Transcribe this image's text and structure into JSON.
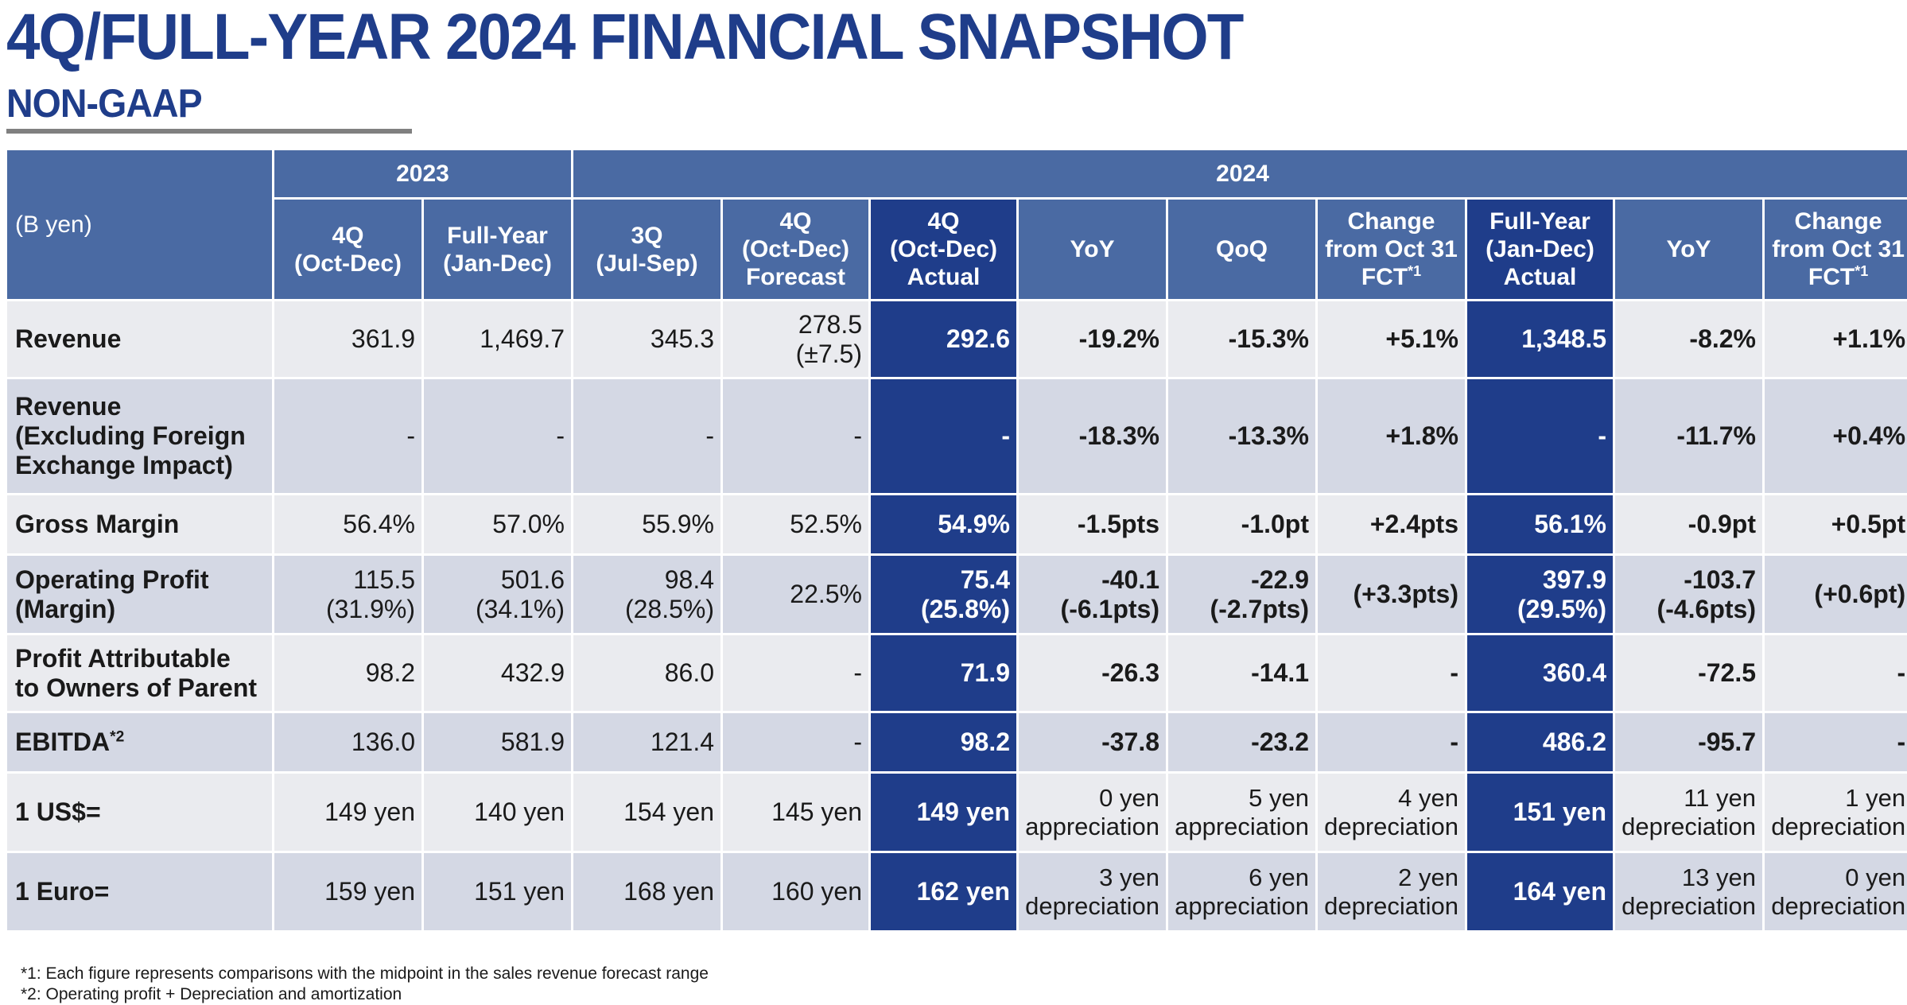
{
  "title": "4Q/FULL-YEAR 2024 FINANCIAL SNAPSHOT",
  "subtitle": "NON-GAAP",
  "colors": {
    "accent": "#1f3d8a",
    "header": "#4a6aa3",
    "row_light": "#eaebef",
    "row_dark": "#d4d8e4",
    "rule": "#808080"
  },
  "table": {
    "unit_label": "(B yen)",
    "year_2023": "2023",
    "year_2024": "2024",
    "columns": [
      {
        "line1": "4Q",
        "line2": "(Oct-Dec)",
        "line3": ""
      },
      {
        "line1": "Full-Year",
        "line2": "(Jan-Dec)",
        "line3": ""
      },
      {
        "line1": "3Q",
        "line2": "(Jul-Sep)",
        "line3": ""
      },
      {
        "line1": "4Q",
        "line2": "(Oct-Dec)",
        "line3": "Forecast"
      },
      {
        "line1": "4Q",
        "line2": "(Oct-Dec)",
        "line3": "Actual"
      },
      {
        "line1": "YoY",
        "line2": "",
        "line3": ""
      },
      {
        "line1": "QoQ",
        "line2": "",
        "line3": ""
      },
      {
        "line1": "Change",
        "line2": "from Oct 31",
        "line3": "FCT",
        "note": "*1"
      },
      {
        "line1": "Full-Year",
        "line2": "(Jan-Dec)",
        "line3": "Actual"
      },
      {
        "line1": "YoY",
        "line2": "",
        "line3": ""
      },
      {
        "line1": "Change",
        "line2": "from Oct 31",
        "line3": "FCT",
        "note": "*1"
      }
    ],
    "rows": [
      {
        "label1": "Revenue",
        "label2": "",
        "label3": "",
        "label_note": "",
        "cells": [
          [
            "361.9",
            ""
          ],
          [
            "1,469.7",
            ""
          ],
          [
            "345.3",
            ""
          ],
          [
            "278.5",
            "(±7.5)"
          ],
          [
            "292.6",
            ""
          ],
          [
            "-19.2%",
            ""
          ],
          [
            "-15.3%",
            ""
          ],
          [
            "+5.1%",
            ""
          ],
          [
            "1,348.5",
            ""
          ],
          [
            "-8.2%",
            ""
          ],
          [
            "+1.1%",
            ""
          ]
        ]
      },
      {
        "label1": "Revenue",
        "label2": "(Excluding Foreign",
        "label3": "Exchange Impact)",
        "label_note": "",
        "cells": [
          [
            "-",
            ""
          ],
          [
            "-",
            ""
          ],
          [
            "-",
            ""
          ],
          [
            "-",
            ""
          ],
          [
            "-",
            ""
          ],
          [
            "-18.3%",
            ""
          ],
          [
            "-13.3%",
            ""
          ],
          [
            "+1.8%",
            ""
          ],
          [
            "-",
            ""
          ],
          [
            "-11.7%",
            ""
          ],
          [
            "+0.4%",
            ""
          ]
        ]
      },
      {
        "label1": "Gross Margin",
        "label2": "",
        "label3": "",
        "label_note": "",
        "cells": [
          [
            "56.4%",
            ""
          ],
          [
            "57.0%",
            ""
          ],
          [
            "55.9%",
            ""
          ],
          [
            "52.5%",
            ""
          ],
          [
            "54.9%",
            ""
          ],
          [
            "-1.5pts",
            ""
          ],
          [
            "-1.0pt",
            ""
          ],
          [
            "+2.4pts",
            ""
          ],
          [
            "56.1%",
            ""
          ],
          [
            "-0.9pt",
            ""
          ],
          [
            "+0.5pt",
            ""
          ]
        ]
      },
      {
        "label1": "Operating Profit",
        "label2": "(Margin)",
        "label3": "",
        "label_note": "",
        "cells": [
          [
            "115.5",
            "(31.9%)"
          ],
          [
            "501.6",
            "(34.1%)"
          ],
          [
            "98.4",
            "(28.5%)"
          ],
          [
            "22.5%",
            ""
          ],
          [
            "75.4",
            "(25.8%)"
          ],
          [
            "-40.1",
            "(-6.1pts)"
          ],
          [
            "-22.9",
            "(-2.7pts)"
          ],
          [
            "(+3.3pts)",
            ""
          ],
          [
            "397.9",
            "(29.5%)"
          ],
          [
            "-103.7",
            "(-4.6pts)"
          ],
          [
            "(+0.6pt)",
            ""
          ]
        ]
      },
      {
        "label1": "Profit Attributable",
        "label2": "to Owners of Parent",
        "label3": "",
        "label_note": "",
        "cells": [
          [
            "98.2",
            ""
          ],
          [
            "432.9",
            ""
          ],
          [
            "86.0",
            ""
          ],
          [
            "-",
            ""
          ],
          [
            "71.9",
            ""
          ],
          [
            "-26.3",
            ""
          ],
          [
            "-14.1",
            ""
          ],
          [
            "-",
            ""
          ],
          [
            "360.4",
            ""
          ],
          [
            "-72.5",
            ""
          ],
          [
            "-",
            ""
          ]
        ]
      },
      {
        "label1": "EBITDA",
        "label2": "",
        "label3": "",
        "label_note": "*2",
        "cells": [
          [
            "136.0",
            ""
          ],
          [
            "581.9",
            ""
          ],
          [
            "121.4",
            ""
          ],
          [
            "-",
            ""
          ],
          [
            "98.2",
            ""
          ],
          [
            "-37.8",
            ""
          ],
          [
            "-23.2",
            ""
          ],
          [
            "-",
            ""
          ],
          [
            "486.2",
            ""
          ],
          [
            "-95.7",
            ""
          ],
          [
            "-",
            ""
          ]
        ]
      },
      {
        "label1": "1 US$=",
        "label2": "",
        "label3": "",
        "label_note": "",
        "cells": [
          [
            "149 yen",
            ""
          ],
          [
            "140 yen",
            ""
          ],
          [
            "154 yen",
            ""
          ],
          [
            "145 yen",
            ""
          ],
          [
            "149 yen",
            ""
          ],
          [
            "0 yen",
            "appreciation"
          ],
          [
            "5 yen",
            "appreciation"
          ],
          [
            "4 yen",
            "depreciation"
          ],
          [
            "151 yen",
            ""
          ],
          [
            "11 yen",
            "depreciation"
          ],
          [
            "1 yen",
            "depreciation"
          ]
        ]
      },
      {
        "label1": "1 Euro=",
        "label2": "",
        "label3": "",
        "label_note": "",
        "cells": [
          [
            "159 yen",
            ""
          ],
          [
            "151 yen",
            ""
          ],
          [
            "168 yen",
            ""
          ],
          [
            "160 yen",
            ""
          ],
          [
            "162 yen",
            ""
          ],
          [
            "3 yen",
            "depreciation"
          ],
          [
            "6 yen",
            "appreciation"
          ],
          [
            "2 yen",
            "depreciation"
          ],
          [
            "164 yen",
            ""
          ],
          [
            "13 yen",
            "depreciation"
          ],
          [
            "0 yen",
            "depreciation"
          ]
        ]
      }
    ]
  },
  "footnotes": [
    "*1: Each figure represents comparisons with the midpoint in the sales revenue forecast range",
    "*2: Operating profit + Depreciation and amortization"
  ]
}
